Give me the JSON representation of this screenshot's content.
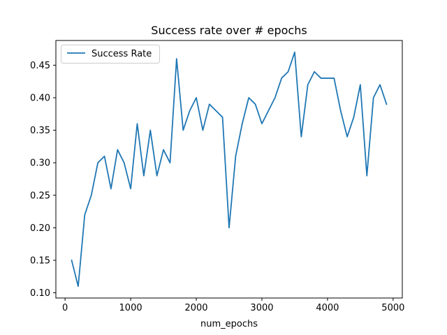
{
  "chart_data": {
    "type": "line",
    "title": "Success rate over # epochs",
    "xlabel": "num_epochs",
    "ylabel": "",
    "xlim": [
      -140,
      5140
    ],
    "ylim": [
      0.092,
      0.488
    ],
    "x_ticks": [
      0,
      1000,
      2000,
      3000,
      4000,
      5000
    ],
    "x_tick_labels": [
      "0",
      "1000",
      "2000",
      "3000",
      "4000",
      "5000"
    ],
    "y_ticks": [
      0.1,
      0.15,
      0.2,
      0.25,
      0.3,
      0.35,
      0.4,
      0.45
    ],
    "y_tick_labels": [
      "0.10",
      "0.15",
      "0.20",
      "0.25",
      "0.30",
      "0.35",
      "0.40",
      "0.45"
    ],
    "grid": false,
    "legend_position": "upper-left",
    "series": [
      {
        "name": "Success Rate",
        "color": "#1f77b4",
        "x": [
          100,
          200,
          300,
          400,
          500,
          600,
          700,
          800,
          900,
          1000,
          1100,
          1200,
          1300,
          1400,
          1500,
          1600,
          1700,
          1800,
          1900,
          2000,
          2100,
          2200,
          2300,
          2400,
          2500,
          2600,
          2700,
          2800,
          2900,
          3000,
          3100,
          3200,
          3300,
          3400,
          3500,
          3600,
          3700,
          3800,
          3900,
          4000,
          4100,
          4200,
          4300,
          4400,
          4500,
          4600,
          4700,
          4800,
          4900
        ],
        "values": [
          0.15,
          0.11,
          0.22,
          0.25,
          0.3,
          0.31,
          0.26,
          0.32,
          0.3,
          0.26,
          0.36,
          0.28,
          0.35,
          0.28,
          0.32,
          0.3,
          0.46,
          0.35,
          0.38,
          0.4,
          0.35,
          0.39,
          0.38,
          0.37,
          0.2,
          0.31,
          0.36,
          0.4,
          0.39,
          0.36,
          0.38,
          0.4,
          0.43,
          0.44,
          0.47,
          0.34,
          0.42,
          0.44,
          0.43,
          0.43,
          0.43,
          0.38,
          0.34,
          0.37,
          0.42,
          0.28,
          0.4,
          0.42,
          0.39
        ]
      }
    ]
  }
}
